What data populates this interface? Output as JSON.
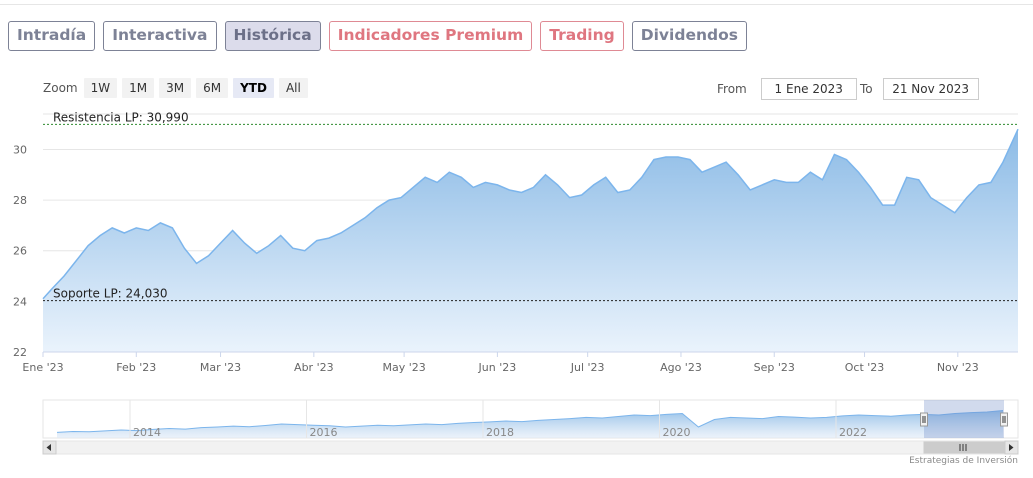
{
  "tabs": [
    {
      "label": "Intradía",
      "style": "normal"
    },
    {
      "label": "Interactiva",
      "style": "normal"
    },
    {
      "label": "Histórica",
      "style": "active"
    },
    {
      "label": "Indicadores Premium",
      "style": "red"
    },
    {
      "label": "Trading",
      "style": "red"
    },
    {
      "label": "Dividendos",
      "style": "normal"
    }
  ],
  "zoom": {
    "label": "Zoom",
    "buttons": [
      "1W",
      "1M",
      "3M",
      "6M",
      "YTD",
      "All"
    ],
    "selected": "YTD"
  },
  "range": {
    "from_label": "From",
    "from_value": "1 Ene 2023",
    "to_label": "To",
    "to_value": "21 Nov 2023"
  },
  "credit": "Estrategias de Inversión",
  "colors": {
    "line": "#7cb5ec",
    "area_top": "#8cbbe6",
    "resistance": "#2e8b2e",
    "support": "#222222"
  },
  "chart_data": {
    "type": "area",
    "title": "",
    "ylim": [
      22,
      31.4
    ],
    "y_ticks": [
      22,
      24,
      26,
      28,
      30
    ],
    "x_ticks": [
      "Ene '23",
      "Feb '23",
      "Mar '23",
      "Abr '23",
      "May '23",
      "Jun '23",
      "Jul '23",
      "Ago '23",
      "Sep '23",
      "Oct '23",
      "Nov '23"
    ],
    "x_start": "2023-01-01",
    "x_end": "2023-11-21",
    "grid": true,
    "annotations": [
      {
        "label": "Resistencia LP: 30,990",
        "value": 30.99,
        "style": "dashed-green"
      },
      {
        "label": "Soporte LP: 24,030",
        "value": 24.03,
        "style": "dashed-black"
      }
    ],
    "series": [
      {
        "x": [
          "2023-01-01",
          "2023-01-04",
          "2023-01-08",
          "2023-01-12",
          "2023-01-16",
          "2023-01-20",
          "2023-01-24",
          "2023-01-28",
          "2023-02-01",
          "2023-02-05",
          "2023-02-09",
          "2023-02-13",
          "2023-02-17",
          "2023-02-21",
          "2023-02-25",
          "2023-03-01",
          "2023-03-05",
          "2023-03-09",
          "2023-03-13",
          "2023-03-17",
          "2023-03-21",
          "2023-03-25",
          "2023-03-29",
          "2023-04-02",
          "2023-04-06",
          "2023-04-10",
          "2023-04-14",
          "2023-04-18",
          "2023-04-22",
          "2023-04-26",
          "2023-04-30",
          "2023-05-04",
          "2023-05-08",
          "2023-05-12",
          "2023-05-16",
          "2023-05-20",
          "2023-05-24",
          "2023-05-28",
          "2023-06-01",
          "2023-06-05",
          "2023-06-09",
          "2023-06-13",
          "2023-06-17",
          "2023-06-21",
          "2023-06-25",
          "2023-06-29",
          "2023-07-03",
          "2023-07-07",
          "2023-07-11",
          "2023-07-15",
          "2023-07-19",
          "2023-07-23",
          "2023-07-27",
          "2023-07-31",
          "2023-08-04",
          "2023-08-08",
          "2023-08-12",
          "2023-08-16",
          "2023-08-20",
          "2023-08-24",
          "2023-08-28",
          "2023-09-01",
          "2023-09-05",
          "2023-09-09",
          "2023-09-13",
          "2023-09-17",
          "2023-09-21",
          "2023-09-25",
          "2023-09-29",
          "2023-10-03",
          "2023-10-07",
          "2023-10-11",
          "2023-10-15",
          "2023-10-19",
          "2023-10-23",
          "2023-10-27",
          "2023-10-31",
          "2023-11-04",
          "2023-11-08",
          "2023-11-12",
          "2023-11-16",
          "2023-11-21"
        ],
        "values": [
          24.1,
          24.5,
          25.0,
          25.6,
          26.2,
          26.6,
          26.9,
          26.7,
          26.9,
          26.8,
          27.1,
          26.9,
          26.1,
          25.5,
          25.8,
          26.3,
          26.8,
          26.3,
          25.9,
          26.2,
          26.6,
          26.1,
          26.0,
          26.4,
          26.5,
          26.7,
          27.0,
          27.3,
          27.7,
          28.0,
          28.1,
          28.5,
          28.9,
          28.7,
          29.1,
          28.9,
          28.5,
          28.7,
          28.6,
          28.4,
          28.3,
          28.5,
          29.0,
          28.6,
          28.1,
          28.2,
          28.6,
          28.9,
          28.3,
          28.4,
          28.9,
          29.6,
          29.7,
          29.7,
          29.6,
          29.1,
          29.3,
          29.5,
          29.0,
          28.4,
          28.6,
          28.8,
          28.7,
          28.7,
          29.1,
          28.8,
          29.8,
          29.6,
          29.1,
          28.5,
          27.8,
          27.8,
          28.9,
          28.8,
          28.1,
          27.8,
          27.5,
          28.1,
          28.6,
          28.7,
          29.5,
          30.8
        ]
      }
    ]
  },
  "navigator": {
    "labels": [
      "2014",
      "2016",
      "2018",
      "2020",
      "2022"
    ],
    "values": [
      0.12,
      0.15,
      0.14,
      0.17,
      0.2,
      0.18,
      0.22,
      0.25,
      0.23,
      0.28,
      0.3,
      0.33,
      0.31,
      0.35,
      0.4,
      0.38,
      0.36,
      0.34,
      0.3,
      0.33,
      0.36,
      0.34,
      0.37,
      0.4,
      0.38,
      0.42,
      0.45,
      0.47,
      0.5,
      0.48,
      0.52,
      0.55,
      0.58,
      0.62,
      0.6,
      0.65,
      0.7,
      0.68,
      0.72,
      0.75,
      0.3,
      0.55,
      0.62,
      0.6,
      0.58,
      0.65,
      0.63,
      0.6,
      0.62,
      0.67,
      0.7,
      0.68,
      0.66,
      0.7,
      0.72,
      0.7,
      0.75,
      0.78,
      0.8,
      0.85
    ]
  }
}
